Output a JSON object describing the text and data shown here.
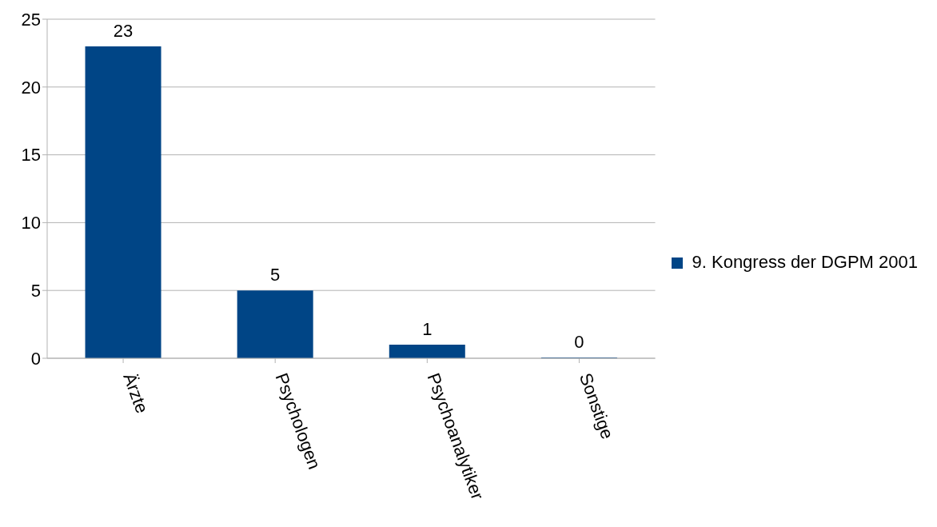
{
  "chart_data": {
    "type": "bar",
    "categories": [
      "Ärzte",
      "Psychologen",
      "Psychoanalytiker",
      "Sonstige"
    ],
    "series": [
      {
        "name": "9. Kongress der DGPM 2001",
        "color": "#004586",
        "values": [
          23,
          5,
          1,
          0
        ]
      }
    ],
    "ylim": [
      0,
      25
    ],
    "yticks": [
      0,
      5,
      10,
      15,
      20,
      25
    ],
    "grid": "y",
    "legend": "right",
    "data_labels": true
  }
}
